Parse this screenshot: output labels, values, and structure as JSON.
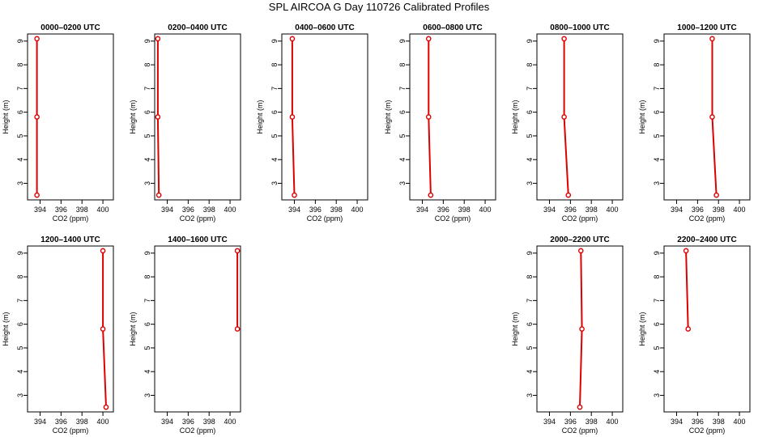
{
  "title": "SPL AIRCOA G  Day 110726  Calibrated Profiles",
  "colors": {
    "profile": "#dd0000",
    "axis": "#000000"
  },
  "chart_data": {
    "type": "line",
    "xlabel": "CO2 (ppm)",
    "ylabel": "Height (m)",
    "xlim": [
      392.8,
      401.0
    ],
    "ylim": [
      2.3,
      9.3
    ],
    "xticks": [
      394,
      396,
      398,
      400
    ],
    "yticks": [
      3,
      4,
      5,
      6,
      7,
      8,
      9
    ],
    "grid": false,
    "panels": [
      {
        "title": "0000–0200 UTC",
        "points": [
          [
            393.7,
            2.5
          ],
          [
            393.7,
            5.8
          ],
          [
            393.7,
            9.1
          ]
        ]
      },
      {
        "title": "0200–0400 UTC",
        "points": [
          [
            393.2,
            2.5
          ],
          [
            393.1,
            5.8
          ],
          [
            393.1,
            9.1
          ]
        ]
      },
      {
        "title": "0400–0600 UTC",
        "points": [
          [
            394.0,
            2.5
          ],
          [
            393.8,
            5.8
          ],
          [
            393.8,
            9.1
          ]
        ]
      },
      {
        "title": "0600–0800 UTC",
        "points": [
          [
            394.8,
            2.5
          ],
          [
            394.6,
            5.8
          ],
          [
            394.6,
            9.1
          ]
        ]
      },
      {
        "title": "0800–1000 UTC",
        "points": [
          [
            395.8,
            2.5
          ],
          [
            395.4,
            5.8
          ],
          [
            395.4,
            9.1
          ]
        ]
      },
      {
        "title": "1000–1200 UTC",
        "points": [
          [
            397.8,
            2.5
          ],
          [
            397.4,
            5.8
          ],
          [
            397.4,
            9.1
          ]
        ]
      },
      {
        "title": "1200–1400 UTC",
        "points": [
          [
            400.3,
            2.5
          ],
          [
            400.0,
            5.8
          ],
          [
            400.0,
            9.1
          ]
        ]
      },
      {
        "title": "1400–1600 UTC",
        "points": [
          [
            400.7,
            5.8
          ],
          [
            400.7,
            9.1
          ]
        ]
      },
      {
        "title": "",
        "points": []
      },
      {
        "title": "",
        "points": []
      },
      {
        "title": "2000–2200 UTC",
        "points": [
          [
            396.9,
            2.5
          ],
          [
            397.1,
            5.8
          ],
          [
            397.0,
            9.1
          ]
        ]
      },
      {
        "title": "2200–2400 UTC",
        "points": [
          [
            395.1,
            5.8
          ],
          [
            394.9,
            9.1
          ]
        ]
      }
    ]
  }
}
